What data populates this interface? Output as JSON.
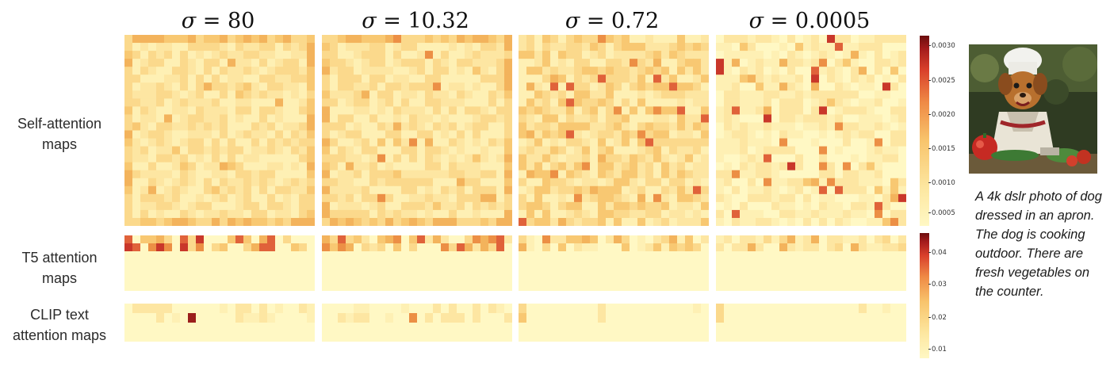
{
  "column_headers": [
    {
      "symbol": "σ",
      "value": "80"
    },
    {
      "symbol": "σ",
      "value": "10.32"
    },
    {
      "symbol": "σ",
      "value": "0.72"
    },
    {
      "symbol": "σ",
      "value": "0.0005"
    }
  ],
  "row_labels": {
    "self_attention": [
      "Self-attention",
      "maps"
    ],
    "t5": [
      "T5 attention",
      "maps"
    ],
    "clip": [
      "CLIP text",
      "attention maps"
    ]
  },
  "colorbar_self": [
    "0.0030",
    "0.0025",
    "0.0020",
    "0.0015",
    "0.0010",
    "0.0005"
  ],
  "colorbar_text": [
    "0.04",
    "0.03",
    "0.02",
    "0.01"
  ],
  "caption": "A 4k dslr photo of dog dressed in an apron. The dog is cooking outdoor. There are fresh vegetables on the counter.",
  "colors": {
    "min": "#fff8c4",
    "low": "#fde4a0",
    "mid": "#f7b866",
    "high": "#e8603a",
    "max": "#b5221d"
  }
}
